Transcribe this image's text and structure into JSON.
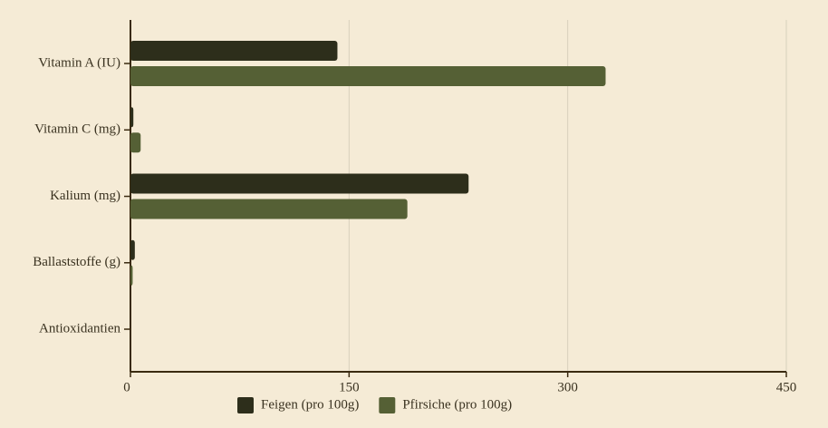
{
  "chart_data": {
    "type": "hbar",
    "categories": [
      "Vitamin A (IU)",
      "Vitamin C (mg)",
      "Kalium (mg)",
      "Ballaststoffe (g)",
      "Antioxidantien"
    ],
    "series": [
      {
        "name": "Feigen (pro 100g)",
        "color": "#2d2e1b",
        "values": [
          142,
          2,
          232,
          3,
          0
        ]
      },
      {
        "name": "Pfirsiche (pro 100g)",
        "color": "#556035",
        "values": [
          326,
          7,
          190,
          1.5,
          0
        ]
      }
    ],
    "xlim": [
      0,
      450
    ],
    "xticks": [
      0,
      150,
      300,
      450
    ],
    "grid": true
  }
}
